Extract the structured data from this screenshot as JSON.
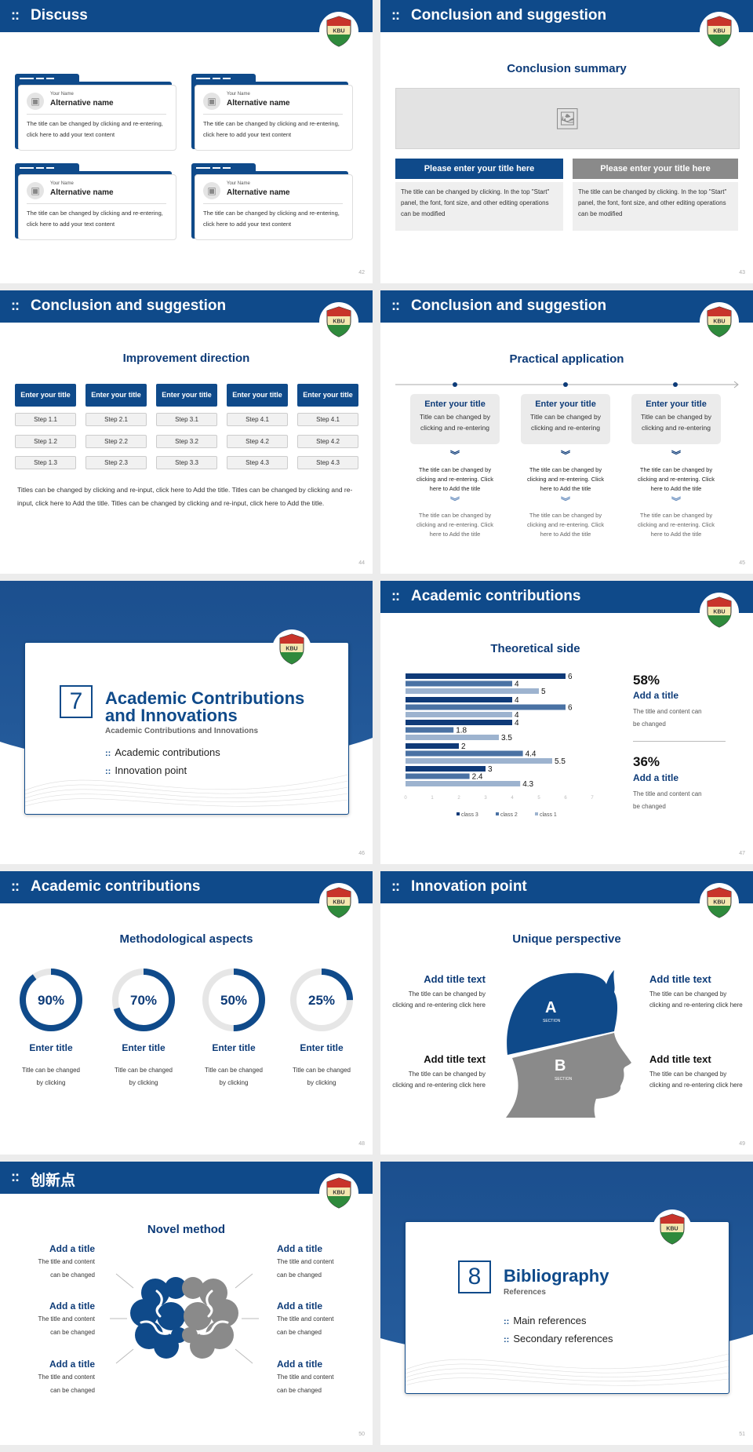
{
  "logo": {
    "text": "KBU",
    "colors": {
      "top": "#c8342b",
      "middle": "#f4e7b0",
      "bottom": "#2f8a3c"
    }
  },
  "colors": {
    "brand": "#0f4a8a",
    "title": "#0d3b78",
    "class3": "#0f3a78",
    "class2": "#4a72a4",
    "class1": "#9db3cf",
    "ring_bg": "#e6e6e6",
    "gray": "#8a8a8a"
  },
  "header_icon": "::",
  "s42": {
    "title": "Discuss",
    "page": "42",
    "cards": [
      {
        "name_label": "Your Name",
        "name": "Alternative name",
        "text": "The title can be changed by clicking and re-entering, click here to add your text content"
      },
      {
        "name_label": "Your Name",
        "name": "Alternative name",
        "text": "The title can be changed by clicking and re-entering, click here to add your text content"
      },
      {
        "name_label": "Your Name",
        "name": "Alternative name",
        "text": "The title can be changed by clicking and re-entering, click here to add your text content"
      },
      {
        "name_label": "Your Name",
        "name": "Alternative name",
        "text": "The title can be changed by clicking and re-entering, click here to add your text content"
      }
    ]
  },
  "s43": {
    "title": "Conclusion and suggestion",
    "page": "43",
    "subtitle": "Conclusion summary",
    "boxes": [
      {
        "title": "Please enter your title here",
        "text": "The title can be changed by clicking. In the top \"Start\" panel, the font, font size, and other editing operations can be modified"
      },
      {
        "title": "Please enter your title here",
        "text": "The title can be changed by clicking. In the top \"Start\" panel, the font, font size, and other editing operations can be modified"
      }
    ]
  },
  "s44": {
    "title": "Conclusion and suggestion",
    "page": "44",
    "subtitle": "Improvement direction",
    "columns": [
      {
        "title": "Enter your title",
        "steps": [
          "Step 1.1",
          "Step 1.2",
          "Step 1.3"
        ]
      },
      {
        "title": "Enter your title",
        "steps": [
          "Step 2.1",
          "Step 2.2",
          "Step 2.3"
        ]
      },
      {
        "title": "Enter your title",
        "steps": [
          "Step 3.1",
          "Step 3.2",
          "Step 3.3"
        ]
      },
      {
        "title": "Enter your title",
        "steps": [
          "Step 4.1",
          "Step 4.2",
          "Step 4.3"
        ]
      },
      {
        "title": "Enter your title",
        "steps": [
          "Step 4.1",
          "Step 4.2",
          "Step 4.3"
        ]
      }
    ],
    "paragraph": "Titles can be changed by clicking and re-input, click here to Add the title. Titles can be changed by clicking and re-input, click here to Add the title. Titles can be changed by clicking and re-input, click here to Add the title."
  },
  "s45": {
    "title": "Conclusion and suggestion",
    "page": "45",
    "subtitle": "Practical application",
    "items": [
      {
        "title": "Enter your title",
        "text": "Title can be changed by clicking and re-entering",
        "detail1": "The title can be changed by clicking and re-entering. Click here to Add the title",
        "detail2": "The title can be changed by clicking and re-entering. Click here to Add the title"
      },
      {
        "title": "Enter your title",
        "text": "Title can be changed by clicking and re-entering",
        "detail1": "The title can be changed by clicking and re-entering. Click here to Add the title",
        "detail2": "The title can be changed by clicking and re-entering. Click here to Add the title"
      },
      {
        "title": "Enter your title",
        "text": "Title can be changed by clicking and re-entering",
        "detail1": "The title can be changed by clicking and re-entering. Click here to Add the title",
        "detail2": "The title can be changed by clicking and re-entering. Click here to Add the title"
      }
    ]
  },
  "s46": {
    "page": "46",
    "number": "7",
    "title_line1": "Academic Contributions",
    "title_line2": "and Innovations",
    "subtitle": "Academic Contributions and Innovations",
    "bullets": [
      "Academic contributions",
      "Innovation point"
    ]
  },
  "s47": {
    "title": "Academic contributions",
    "page": "47",
    "subtitle": "Theoretical side",
    "stats": [
      {
        "value": "58%",
        "title": "Add a title",
        "text": "The title and content can be changed"
      },
      {
        "value": "36%",
        "title": "Add a title",
        "text": "The title and content can be changed"
      }
    ]
  },
  "chart_data": {
    "type": "bar",
    "orientation": "horizontal",
    "series": [
      {
        "name": "class 3",
        "values": [
          6,
          4,
          4,
          2,
          3
        ]
      },
      {
        "name": "class 2",
        "values": [
          4,
          6,
          1.8,
          4.4,
          2.4
        ]
      },
      {
        "name": "class 1",
        "values": [
          5,
          4,
          3.5,
          5.5,
          4.3
        ]
      }
    ],
    "xlim": [
      0,
      7
    ],
    "xticks": [
      "0",
      "1",
      "2",
      "3",
      "4",
      "5",
      "6",
      "7"
    ],
    "legend": "bottom",
    "grid": false,
    "data_labels": true
  },
  "s48": {
    "title": "Academic contributions",
    "page": "48",
    "subtitle": "Methodological aspects",
    "rings": [
      {
        "percent": 90,
        "label": "90%",
        "title": "Enter title",
        "text": "Title can be changed by clicking"
      },
      {
        "percent": 70,
        "label": "70%",
        "title": "Enter title",
        "text": "Title can be changed by clicking"
      },
      {
        "percent": 50,
        "label": "50%",
        "title": "Enter title",
        "text": "Title can be changed by clicking"
      },
      {
        "percent": 25,
        "label": "25%",
        "title": "Enter title",
        "text": "Title can be changed by clicking"
      }
    ]
  },
  "s49": {
    "title": "Innovation point",
    "page": "49",
    "subtitle": "Unique perspective",
    "head": {
      "a": "A",
      "b": "B",
      "section": "SECTION"
    },
    "texts": [
      {
        "title": "Add title text",
        "text": "The title can be changed by clicking and re-entering click here"
      },
      {
        "title": "Add title text",
        "text": "The title can be changed by clicking and re-entering click here"
      },
      {
        "title": "Add title text",
        "text": "The title can be changed by clicking and re-entering click here"
      },
      {
        "title": "Add title text",
        "text": "The title can be changed by clicking and re-entering click here"
      }
    ]
  },
  "s50": {
    "title": "创新点",
    "page": "50",
    "subtitle": "Novel method",
    "texts": [
      {
        "title": "Add a title",
        "text": "The title and content can be changed"
      },
      {
        "title": "Add a title",
        "text": "The title and content can be changed"
      },
      {
        "title": "Add a title",
        "text": "The title and content can be changed"
      },
      {
        "title": "Add a title",
        "text": "The title and content can be changed"
      },
      {
        "title": "Add a title",
        "text": "The title and content can be changed"
      },
      {
        "title": "Add a title",
        "text": "The title and content can be changed"
      }
    ]
  },
  "s51": {
    "page": "51",
    "number": "8",
    "title": "Bibliography",
    "subtitle": "References",
    "bullets": [
      "Main references",
      "Secondary references"
    ]
  }
}
